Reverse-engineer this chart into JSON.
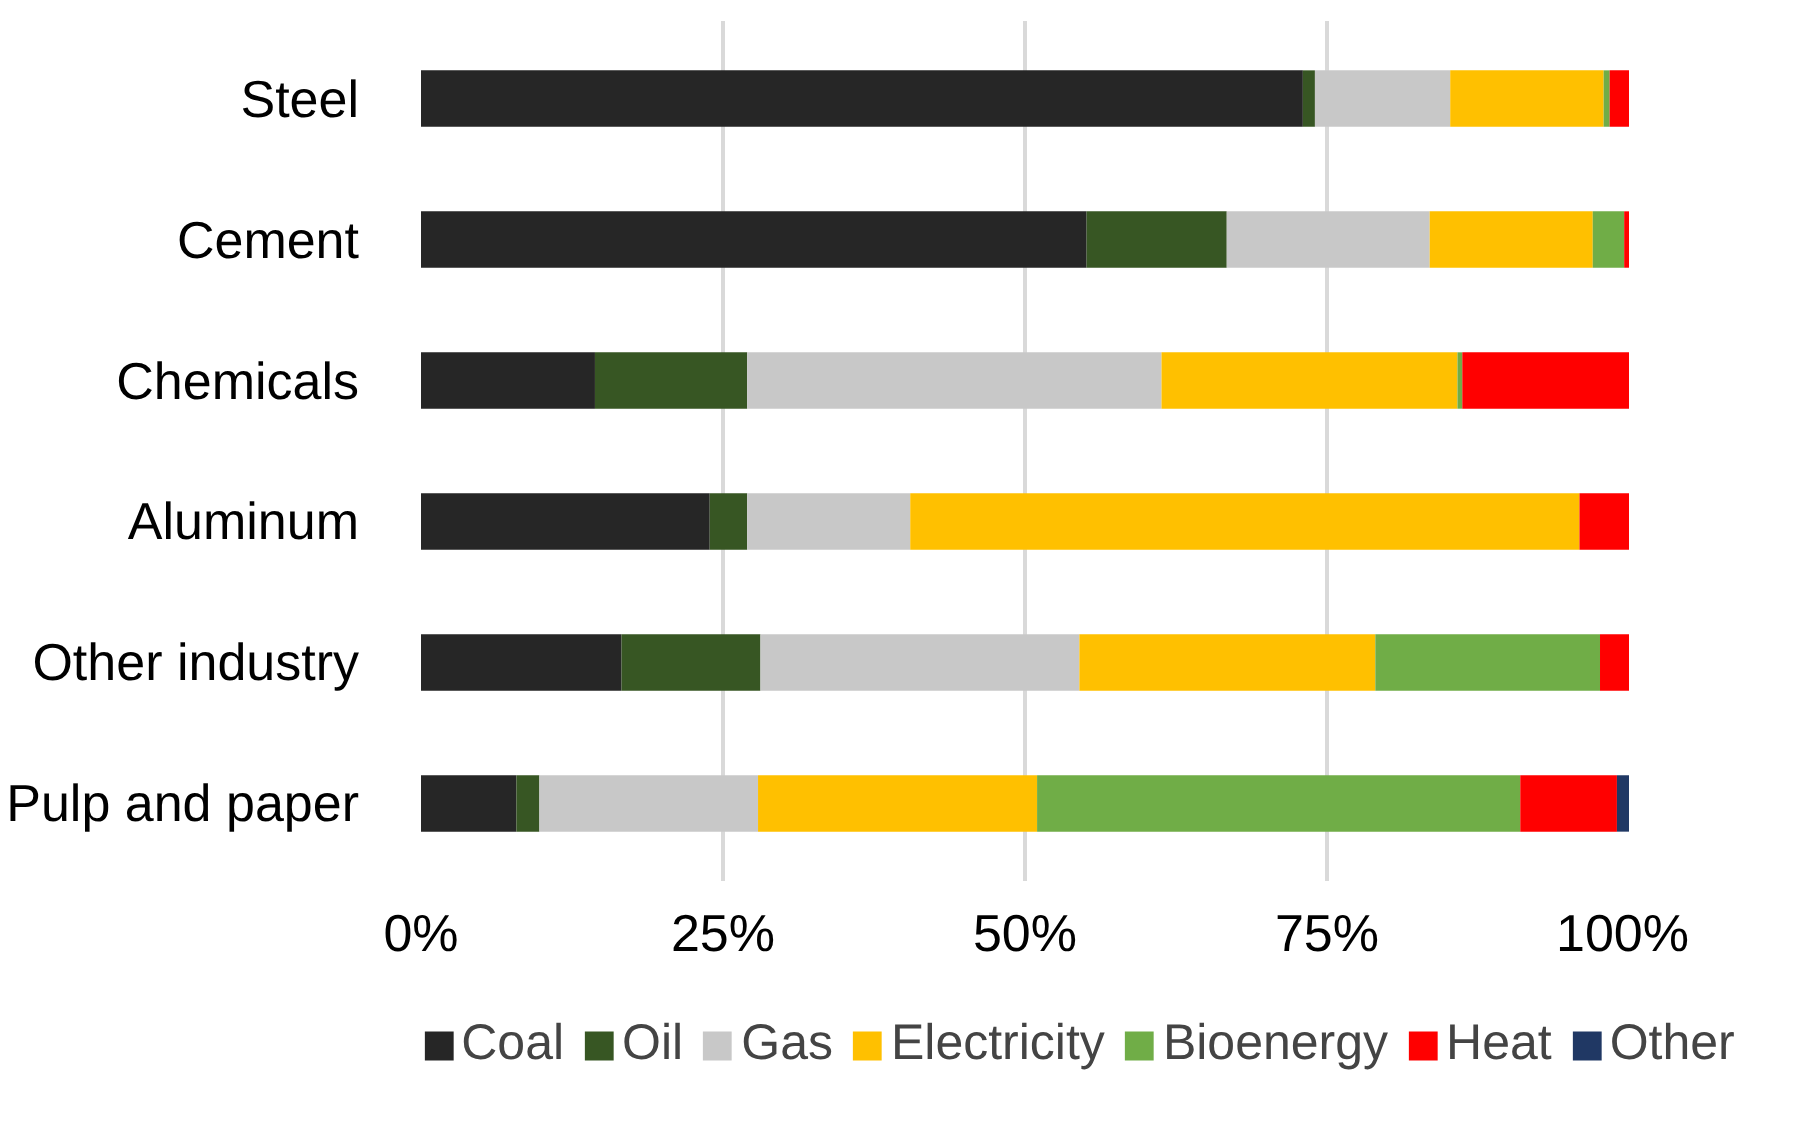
{
  "chart_data": {
    "type": "bar",
    "orientation": "horizontal",
    "stacked": true,
    "categories": [
      "Steel",
      "Cement",
      "Chemicals",
      "Aluminum",
      "Other industry",
      "Pulp and paper"
    ],
    "series": [
      {
        "name": "Coal",
        "color": "#262626",
        "values": [
          73.0,
          55.1,
          14.4,
          23.9,
          16.6,
          7.9
        ]
      },
      {
        "name": "Oil",
        "color": "#375623",
        "values": [
          1.0,
          11.6,
          12.6,
          3.1,
          11.5,
          1.9
        ]
      },
      {
        "name": "Gas",
        "color": "#c8c8c8",
        "values": [
          11.2,
          16.8,
          34.3,
          13.5,
          26.4,
          18.1
        ]
      },
      {
        "name": "Electricity",
        "color": "#ffc000",
        "values": [
          12.7,
          13.5,
          24.5,
          55.4,
          24.5,
          23.1
        ]
      },
      {
        "name": "Bioenergy",
        "color": "#70ad47",
        "values": [
          0.5,
          2.6,
          0.4,
          0,
          18.6,
          40.0
        ]
      },
      {
        "name": "Heat",
        "color": "#ff0000",
        "values": [
          1.6,
          0.4,
          13.8,
          4.1,
          2.4,
          8.0
        ]
      },
      {
        "name": "Other",
        "color": "#203864",
        "values": [
          0,
          0,
          0,
          0,
          0,
          1.0
        ]
      }
    ],
    "xlim": [
      0,
      100
    ],
    "xticks": [
      {
        "value": 0,
        "label": "0%"
      },
      {
        "value": 25,
        "label": "25%"
      },
      {
        "value": 50,
        "label": "50%"
      },
      {
        "value": 75,
        "label": "75%"
      },
      {
        "value": 100,
        "label": "100%"
      }
    ],
    "grid": "x",
    "legend": "bottom"
  }
}
